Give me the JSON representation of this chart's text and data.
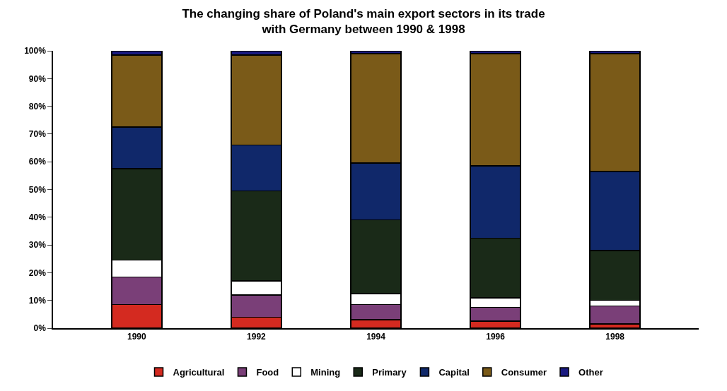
{
  "chart_data": {
    "type": "bar",
    "stacked": true,
    "title": "The changing share of Poland's main export sectors in its trade\nwith Germany between 1990 & 1998",
    "categories": [
      "1990",
      "1992",
      "1994",
      "1996",
      "1998"
    ],
    "series": [
      {
        "name": "Agricultural",
        "color": "#d42a20",
        "values": [
          8.5,
          4,
          3,
          2.5,
          1.5
        ]
      },
      {
        "name": "Food",
        "color": "#7a3f78",
        "values": [
          10,
          8,
          5.5,
          5,
          6.5
        ]
      },
      {
        "name": "Mining",
        "color": "#ffffff",
        "values": [
          6,
          5,
          4,
          3.5,
          2
        ]
      },
      {
        "name": "Primary",
        "color": "#1a2a18",
        "values": [
          33,
          32.5,
          26.5,
          21.5,
          18
        ]
      },
      {
        "name": "Capital",
        "color": "#10286a",
        "values": [
          15,
          16.5,
          20.5,
          26,
          28.5
        ]
      },
      {
        "name": "Consumer",
        "color": "#7a5a18",
        "values": [
          26,
          32.5,
          39.5,
          40.5,
          42.5
        ]
      },
      {
        "name": "Other",
        "color": "#1a1a80",
        "values": [
          1.5,
          1.5,
          1,
          1,
          1
        ]
      }
    ],
    "ylim": [
      0,
      100
    ],
    "yticks": [
      {
        "value": 0,
        "label": "0%"
      },
      {
        "value": 10,
        "label": "10%"
      },
      {
        "value": 20,
        "label": "20%"
      },
      {
        "value": 30,
        "label": "30%"
      },
      {
        "value": 40,
        "label": "40%"
      },
      {
        "value": 50,
        "label": "50%"
      },
      {
        "value": 60,
        "label": "60%"
      },
      {
        "value": 70,
        "label": "70%"
      },
      {
        "value": 80,
        "label": "80%"
      },
      {
        "value": 90,
        "label": "90%"
      },
      {
        "value": 100,
        "label": "100%"
      }
    ],
    "legend": "bottom"
  }
}
